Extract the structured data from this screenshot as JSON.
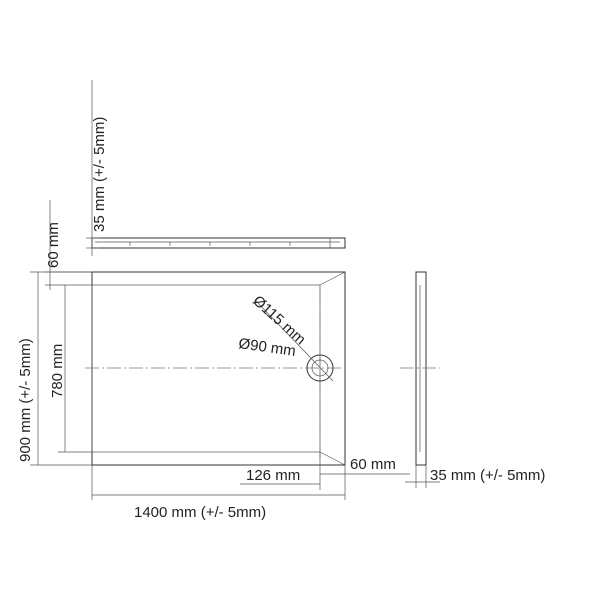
{
  "labels": {
    "top_height": "35 mm (+/- 5mm)",
    "left_rim": "60 mm",
    "total_width": "900 mm (+/- 5mm)",
    "inner_width": "780 mm",
    "outer_drain": "Ø115 mm",
    "inner_drain": "Ø90 mm",
    "drain_offset": "126 mm",
    "right_rim": "60 mm",
    "total_length": "1400 mm (+/- 5mm)",
    "side_height": "35 mm (+/- 5mm)"
  }
}
